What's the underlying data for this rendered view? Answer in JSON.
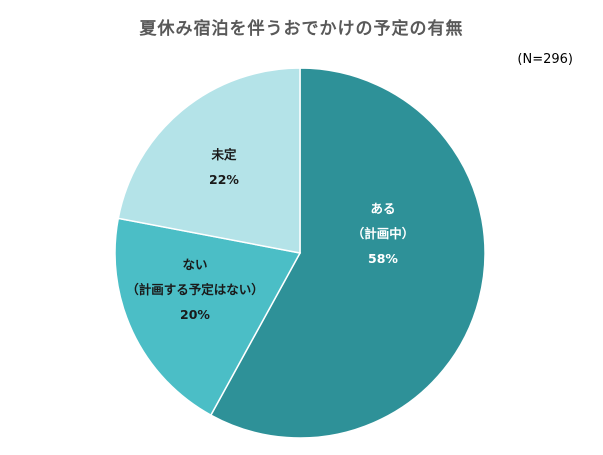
{
  "chart_data": {
    "type": "pie",
    "title": "夏休み宿泊を伴うおでかけの予定の有無",
    "note": "(N=296)",
    "slices": [
      {
        "label_lines": [
          "ある",
          "（計画中）"
        ],
        "percent_label": "58%",
        "value": 58,
        "color": "#2E9198",
        "text_color": "#ffffff"
      },
      {
        "label_lines": [
          "ない",
          "（計画する予定はない）"
        ],
        "percent_label": "20%",
        "value": 20,
        "color": "#4BBEC6",
        "text_color": "#1a1a1a"
      },
      {
        "label_lines": [
          "未定"
        ],
        "percent_label": "22%",
        "value": 22,
        "color": "#B4E3E8",
        "text_color": "#1a1a1a"
      }
    ],
    "start_angle": "12 o'clock",
    "direction": "clockwise"
  }
}
